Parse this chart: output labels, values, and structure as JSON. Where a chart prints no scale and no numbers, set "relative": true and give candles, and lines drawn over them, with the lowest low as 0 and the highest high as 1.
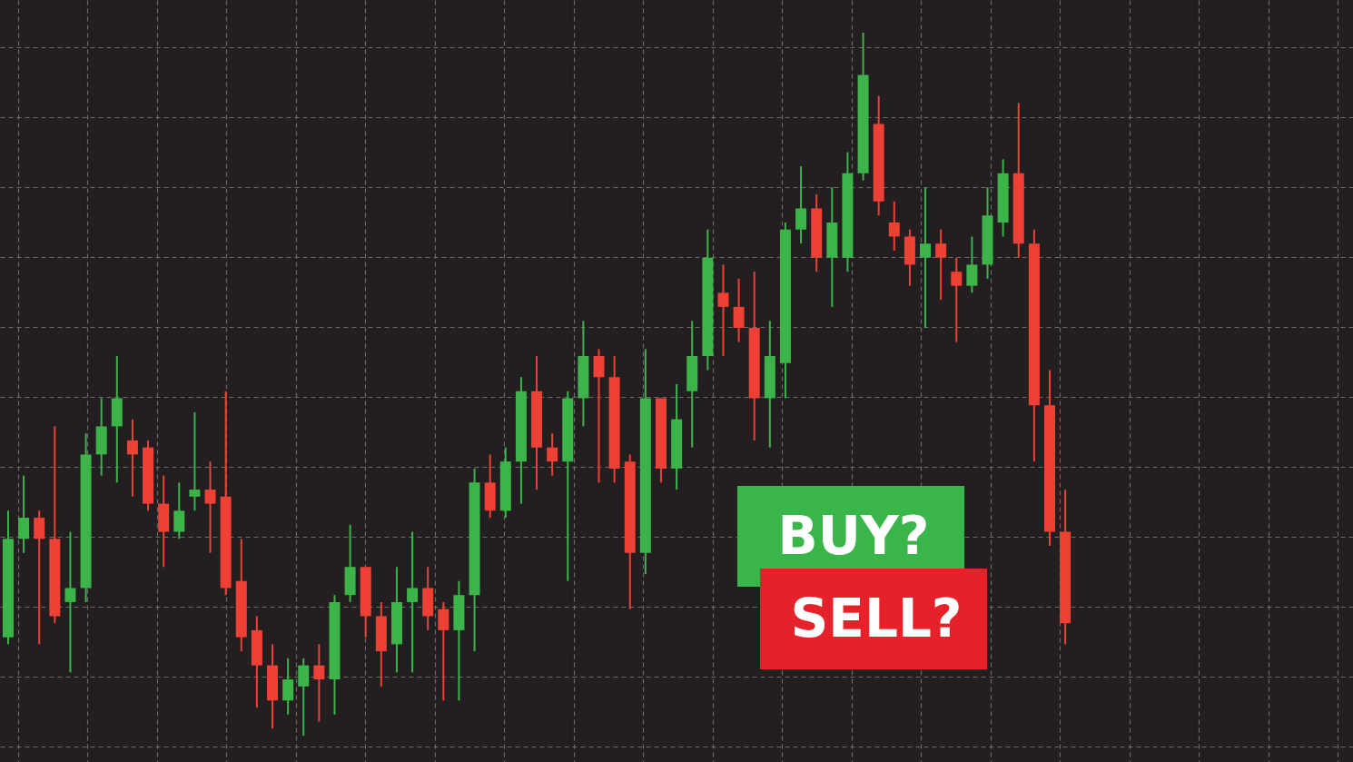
{
  "chart_data": {
    "type": "candlestick",
    "relative": true,
    "grid": true,
    "categories": [
      null,
      null,
      null,
      null,
      null,
      null,
      null,
      null,
      null,
      null,
      null,
      null,
      null,
      null,
      null,
      null,
      null,
      null,
      null,
      null,
      null,
      null,
      null,
      null,
      null,
      null,
      null,
      null,
      null,
      null,
      null,
      null,
      null,
      null,
      null,
      null,
      null,
      null,
      null,
      null,
      null,
      null,
      null,
      null,
      null,
      null,
      null,
      null,
      null,
      null,
      null,
      null,
      null,
      null,
      null,
      null,
      null,
      null,
      null,
      null,
      null,
      null,
      null,
      null,
      null,
      null,
      null,
      null,
      null
    ],
    "ohlc": [
      [
        0.14,
        0.32,
        0.13,
        0.28
      ],
      [
        0.28,
        0.37,
        0.26,
        0.31
      ],
      [
        0.31,
        0.32,
        0.13,
        0.28
      ],
      [
        0.28,
        0.44,
        0.16,
        0.17
      ],
      [
        0.19,
        0.29,
        0.09,
        0.21
      ],
      [
        0.21,
        0.43,
        0.19,
        0.4
      ],
      [
        0.4,
        0.48,
        0.37,
        0.44
      ],
      [
        0.44,
        0.54,
        0.36,
        0.48
      ],
      [
        0.42,
        0.45,
        0.34,
        0.4
      ],
      [
        0.41,
        0.42,
        0.32,
        0.33
      ],
      [
        0.33,
        0.37,
        0.24,
        0.29
      ],
      [
        0.29,
        0.36,
        0.28,
        0.32
      ],
      [
        0.34,
        0.46,
        0.32,
        0.35
      ],
      [
        0.35,
        0.39,
        0.26,
        0.33
      ],
      [
        0.34,
        0.49,
        0.2,
        0.21
      ],
      [
        0.22,
        0.28,
        0.12,
        0.14
      ],
      [
        0.15,
        0.17,
        0.04,
        0.1
      ],
      [
        0.1,
        0.13,
        0.01,
        0.05
      ],
      [
        0.05,
        0.11,
        0.03,
        0.08
      ],
      [
        0.07,
        0.11,
        0.0,
        0.1
      ],
      [
        0.1,
        0.13,
        0.02,
        0.08
      ],
      [
        0.08,
        0.2,
        0.03,
        0.19
      ],
      [
        0.2,
        0.3,
        0.19,
        0.24
      ],
      [
        0.24,
        0.24,
        0.14,
        0.17
      ],
      [
        0.17,
        0.19,
        0.07,
        0.12
      ],
      [
        0.13,
        0.24,
        0.09,
        0.19
      ],
      [
        0.19,
        0.29,
        0.09,
        0.21
      ],
      [
        0.21,
        0.24,
        0.15,
        0.17
      ],
      [
        0.18,
        0.19,
        0.05,
        0.15
      ],
      [
        0.15,
        0.22,
        0.05,
        0.2
      ],
      [
        0.2,
        0.38,
        0.12,
        0.36
      ],
      [
        0.36,
        0.4,
        0.31,
        0.32
      ],
      [
        0.32,
        0.41,
        0.31,
        0.39
      ],
      [
        0.39,
        0.51,
        0.33,
        0.49
      ],
      [
        0.49,
        0.54,
        0.35,
        0.41
      ],
      [
        0.41,
        0.43,
        0.37,
        0.39
      ],
      [
        0.39,
        0.49,
        0.22,
        0.48
      ],
      [
        0.48,
        0.59,
        0.44,
        0.54
      ],
      [
        0.54,
        0.55,
        0.36,
        0.51
      ],
      [
        0.51,
        0.54,
        0.36,
        0.38
      ],
      [
        0.39,
        0.4,
        0.18,
        0.26
      ],
      [
        0.26,
        0.55,
        0.23,
        0.48
      ],
      [
        0.48,
        0.48,
        0.36,
        0.38
      ],
      [
        0.38,
        0.5,
        0.35,
        0.45
      ],
      [
        0.49,
        0.59,
        0.41,
        0.54
      ],
      [
        0.54,
        0.72,
        0.52,
        0.68
      ],
      [
        0.63,
        0.67,
        0.54,
        0.61
      ],
      [
        0.61,
        0.65,
        0.56,
        0.58
      ],
      [
        0.58,
        0.66,
        0.42,
        0.48
      ],
      [
        0.48,
        0.59,
        0.41,
        0.54
      ],
      [
        0.53,
        0.73,
        0.48,
        0.72
      ],
      [
        0.72,
        0.81,
        0.7,
        0.75
      ],
      [
        0.75,
        0.77,
        0.66,
        0.68
      ],
      [
        0.68,
        0.78,
        0.61,
        0.73
      ],
      [
        0.68,
        0.83,
        0.66,
        0.8
      ],
      [
        0.8,
        1.0,
        0.79,
        0.94
      ],
      [
        0.87,
        0.91,
        0.74,
        0.76
      ],
      [
        0.73,
        0.76,
        0.69,
        0.71
      ],
      [
        0.71,
        0.72,
        0.64,
        0.67
      ],
      [
        0.68,
        0.78,
        0.58,
        0.7
      ],
      [
        0.7,
        0.72,
        0.62,
        0.68
      ],
      [
        0.66,
        0.68,
        0.56,
        0.64
      ],
      [
        0.64,
        0.71,
        0.63,
        0.67
      ],
      [
        0.67,
        0.78,
        0.65,
        0.74
      ],
      [
        0.73,
        0.82,
        0.71,
        0.8
      ],
      [
        0.8,
        0.9,
        0.68,
        0.7
      ],
      [
        0.7,
        0.72,
        0.39,
        0.47
      ],
      [
        0.47,
        0.52,
        0.27,
        0.29
      ],
      [
        0.29,
        0.35,
        0.13,
        0.16
      ]
    ],
    "colors": [
      "#3cb44a",
      "#3cb44a",
      "#ee4136",
      "#ee4136",
      "#3cb44a",
      "#3cb44a",
      "#3cb44a",
      "#3cb44a",
      "#ee4136",
      "#ee4136",
      "#ee4136",
      "#3cb44a",
      "#3cb44a",
      "#ee4136",
      "#ee4136",
      "#ee4136",
      "#ee4136",
      "#ee4136",
      "#3cb44a",
      "#3cb44a",
      "#ee4136",
      "#3cb44a",
      "#3cb44a",
      "#ee4136",
      "#ee4136",
      "#3cb44a",
      "#3cb44a",
      "#ee4136",
      "#ee4136",
      "#3cb44a",
      "#3cb44a",
      "#ee4136",
      "#3cb44a",
      "#3cb44a",
      "#ee4136",
      "#ee4136",
      "#3cb44a",
      "#3cb44a",
      "#ee4136",
      "#ee4136",
      "#ee4136",
      "#3cb44a",
      "#ee4136",
      "#3cb44a",
      "#3cb44a",
      "#3cb44a",
      "#ee4136",
      "#ee4136",
      "#ee4136",
      "#3cb44a",
      "#3cb44a",
      "#3cb44a",
      "#ee4136",
      "#3cb44a",
      "#3cb44a",
      "#3cb44a",
      "#ee4136",
      "#ee4136",
      "#ee4136",
      "#3cb44a",
      "#ee4136",
      "#ee4136",
      "#3cb44a",
      "#3cb44a",
      "#3cb44a",
      "#ee4136",
      "#ee4136",
      "#ee4136",
      "#ee4136"
    ],
    "annotations": [
      "BUY?",
      "SELL?"
    ]
  }
}
